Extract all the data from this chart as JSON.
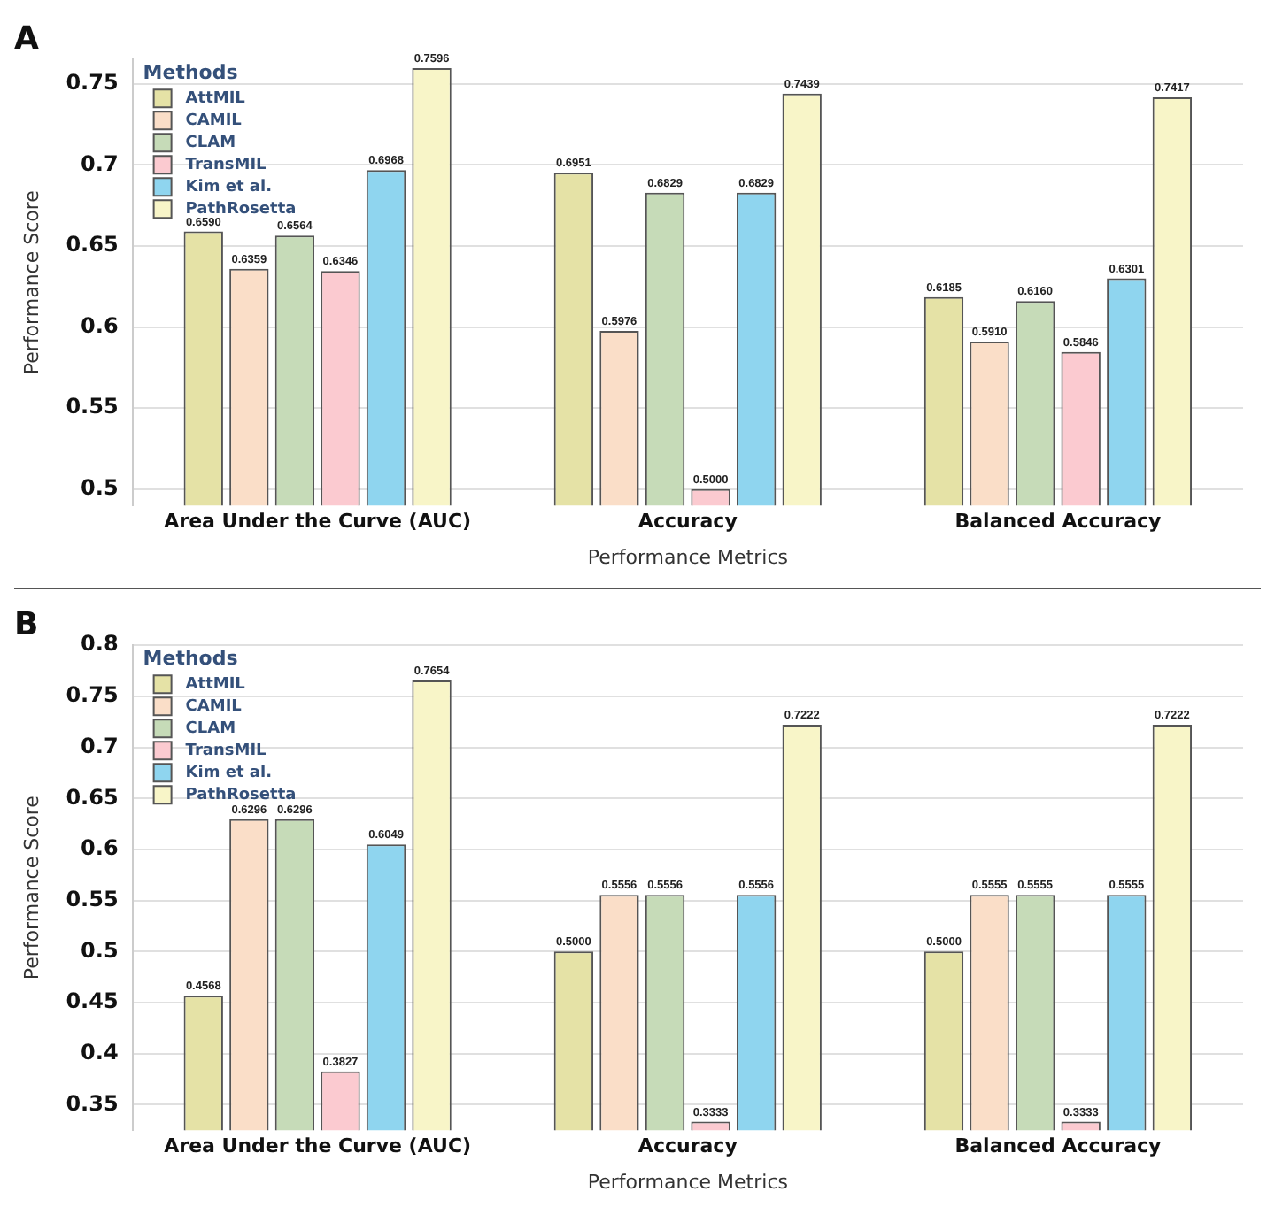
{
  "chart_data": [
    {
      "type": "bar",
      "title": "A",
      "xlabel": "Performance Metrics",
      "ylabel": "Performance Score",
      "legend_title": "Methods",
      "legend": "top left",
      "grid": "y",
      "categories": [
        "Area Under the Curve (AUC)",
        "Accuracy",
        "Balanced Accuracy"
      ],
      "ylim": [
        0.49,
        0.765
      ],
      "yticks": [
        {
          "value": 0.5,
          "label": "0.5"
        },
        {
          "value": 0.55,
          "label": "0.55"
        },
        {
          "value": 0.6,
          "label": "0.6"
        },
        {
          "value": 0.65,
          "label": "0.65"
        },
        {
          "value": 0.7,
          "label": "0.7"
        },
        {
          "value": 0.75,
          "label": "0.75"
        }
      ],
      "series": [
        {
          "name": "AttMIL",
          "color": "#e5e2a6",
          "values": [
            0.659,
            0.6951,
            0.6185
          ],
          "value_labels": [
            "0.6590",
            "0.6951",
            "0.6185"
          ]
        },
        {
          "name": "CAMIL",
          "color": "#fadec8",
          "values": [
            0.6359,
            0.5976,
            0.591
          ],
          "value_labels": [
            "0.6359",
            "0.5976",
            "0.5910"
          ]
        },
        {
          "name": "CLAM",
          "color": "#c6dbb8",
          "values": [
            0.6564,
            0.6829,
            0.616
          ],
          "value_labels": [
            "0.6564",
            "0.6829",
            "0.6160"
          ]
        },
        {
          "name": "TransMIL",
          "color": "#fbcad0",
          "values": [
            0.6346,
            0.5,
            0.5846
          ],
          "value_labels": [
            "0.6346",
            "0.5000",
            "0.5846"
          ]
        },
        {
          "name": "Kim et al.",
          "color": "#8fd5ef",
          "values": [
            0.6968,
            0.6829,
            0.6301
          ],
          "value_labels": [
            "0.6968",
            "0.6829",
            "0.6301"
          ]
        },
        {
          "name": "PathRosetta",
          "color": "#f8f5c8",
          "values": [
            0.7596,
            0.7439,
            0.7417
          ],
          "value_labels": [
            "0.7596",
            "0.7439",
            "0.7417"
          ]
        }
      ]
    },
    {
      "type": "bar",
      "title": "B",
      "xlabel": "Performance Metrics",
      "ylabel": "Performance Score",
      "legend_title": "Methods",
      "legend": "top left",
      "grid": "y",
      "categories": [
        "Area Under the Curve (AUC)",
        "Accuracy",
        "Balanced Accuracy"
      ],
      "ylim": [
        0.325,
        0.8
      ],
      "yticks": [
        {
          "value": 0.35,
          "label": "0.35"
        },
        {
          "value": 0.4,
          "label": "0.4"
        },
        {
          "value": 0.45,
          "label": "0.45"
        },
        {
          "value": 0.5,
          "label": "0.5"
        },
        {
          "value": 0.55,
          "label": "0.55"
        },
        {
          "value": 0.6,
          "label": "0.6"
        },
        {
          "value": 0.65,
          "label": "0.65"
        },
        {
          "value": 0.7,
          "label": "0.7"
        },
        {
          "value": 0.75,
          "label": "0.75"
        },
        {
          "value": 0.8,
          "label": "0.8"
        }
      ],
      "series": [
        {
          "name": "AttMIL",
          "color": "#e5e2a6",
          "values": [
            0.4568,
            0.5,
            0.5
          ],
          "value_labels": [
            "0.4568",
            "0.5000",
            "0.5000"
          ]
        },
        {
          "name": "CAMIL",
          "color": "#fadec8",
          "values": [
            0.6296,
            0.5556,
            0.5555
          ],
          "value_labels": [
            "0.6296",
            "0.5556",
            "0.5555"
          ]
        },
        {
          "name": "CLAM",
          "color": "#c6dbb8",
          "values": [
            0.6296,
            0.5556,
            0.5555
          ],
          "value_labels": [
            "0.6296",
            "0.5556",
            "0.5555"
          ]
        },
        {
          "name": "TransMIL",
          "color": "#fbcad0",
          "values": [
            0.3827,
            0.3333,
            0.3333
          ],
          "value_labels": [
            "0.3827",
            "0.3333",
            "0.3333"
          ]
        },
        {
          "name": "Kim et al.",
          "color": "#8fd5ef",
          "values": [
            0.6049,
            0.5556,
            0.5555
          ],
          "value_labels": [
            "0.6049",
            "0.5556",
            "0.5555"
          ]
        },
        {
          "name": "PathRosetta",
          "color": "#f8f5c8",
          "values": [
            0.7654,
            0.7222,
            0.7222
          ],
          "value_labels": [
            "0.7654",
            "0.7222",
            "0.7222"
          ]
        }
      ]
    }
  ]
}
